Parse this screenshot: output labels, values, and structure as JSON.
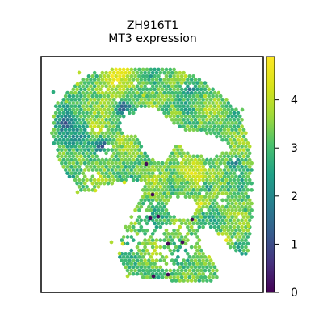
{
  "chart_data": {
    "type": "heatmap",
    "title": "ZH916T1",
    "subtitle": "MT3 expression",
    "colormap": "viridis",
    "colorbar": {
      "vmin": 0,
      "vmax": 4.9,
      "ticks": [
        "0",
        "1",
        "2",
        "3",
        "4"
      ]
    },
    "xlabel": "",
    "ylabel": "",
    "grid": false
  }
}
